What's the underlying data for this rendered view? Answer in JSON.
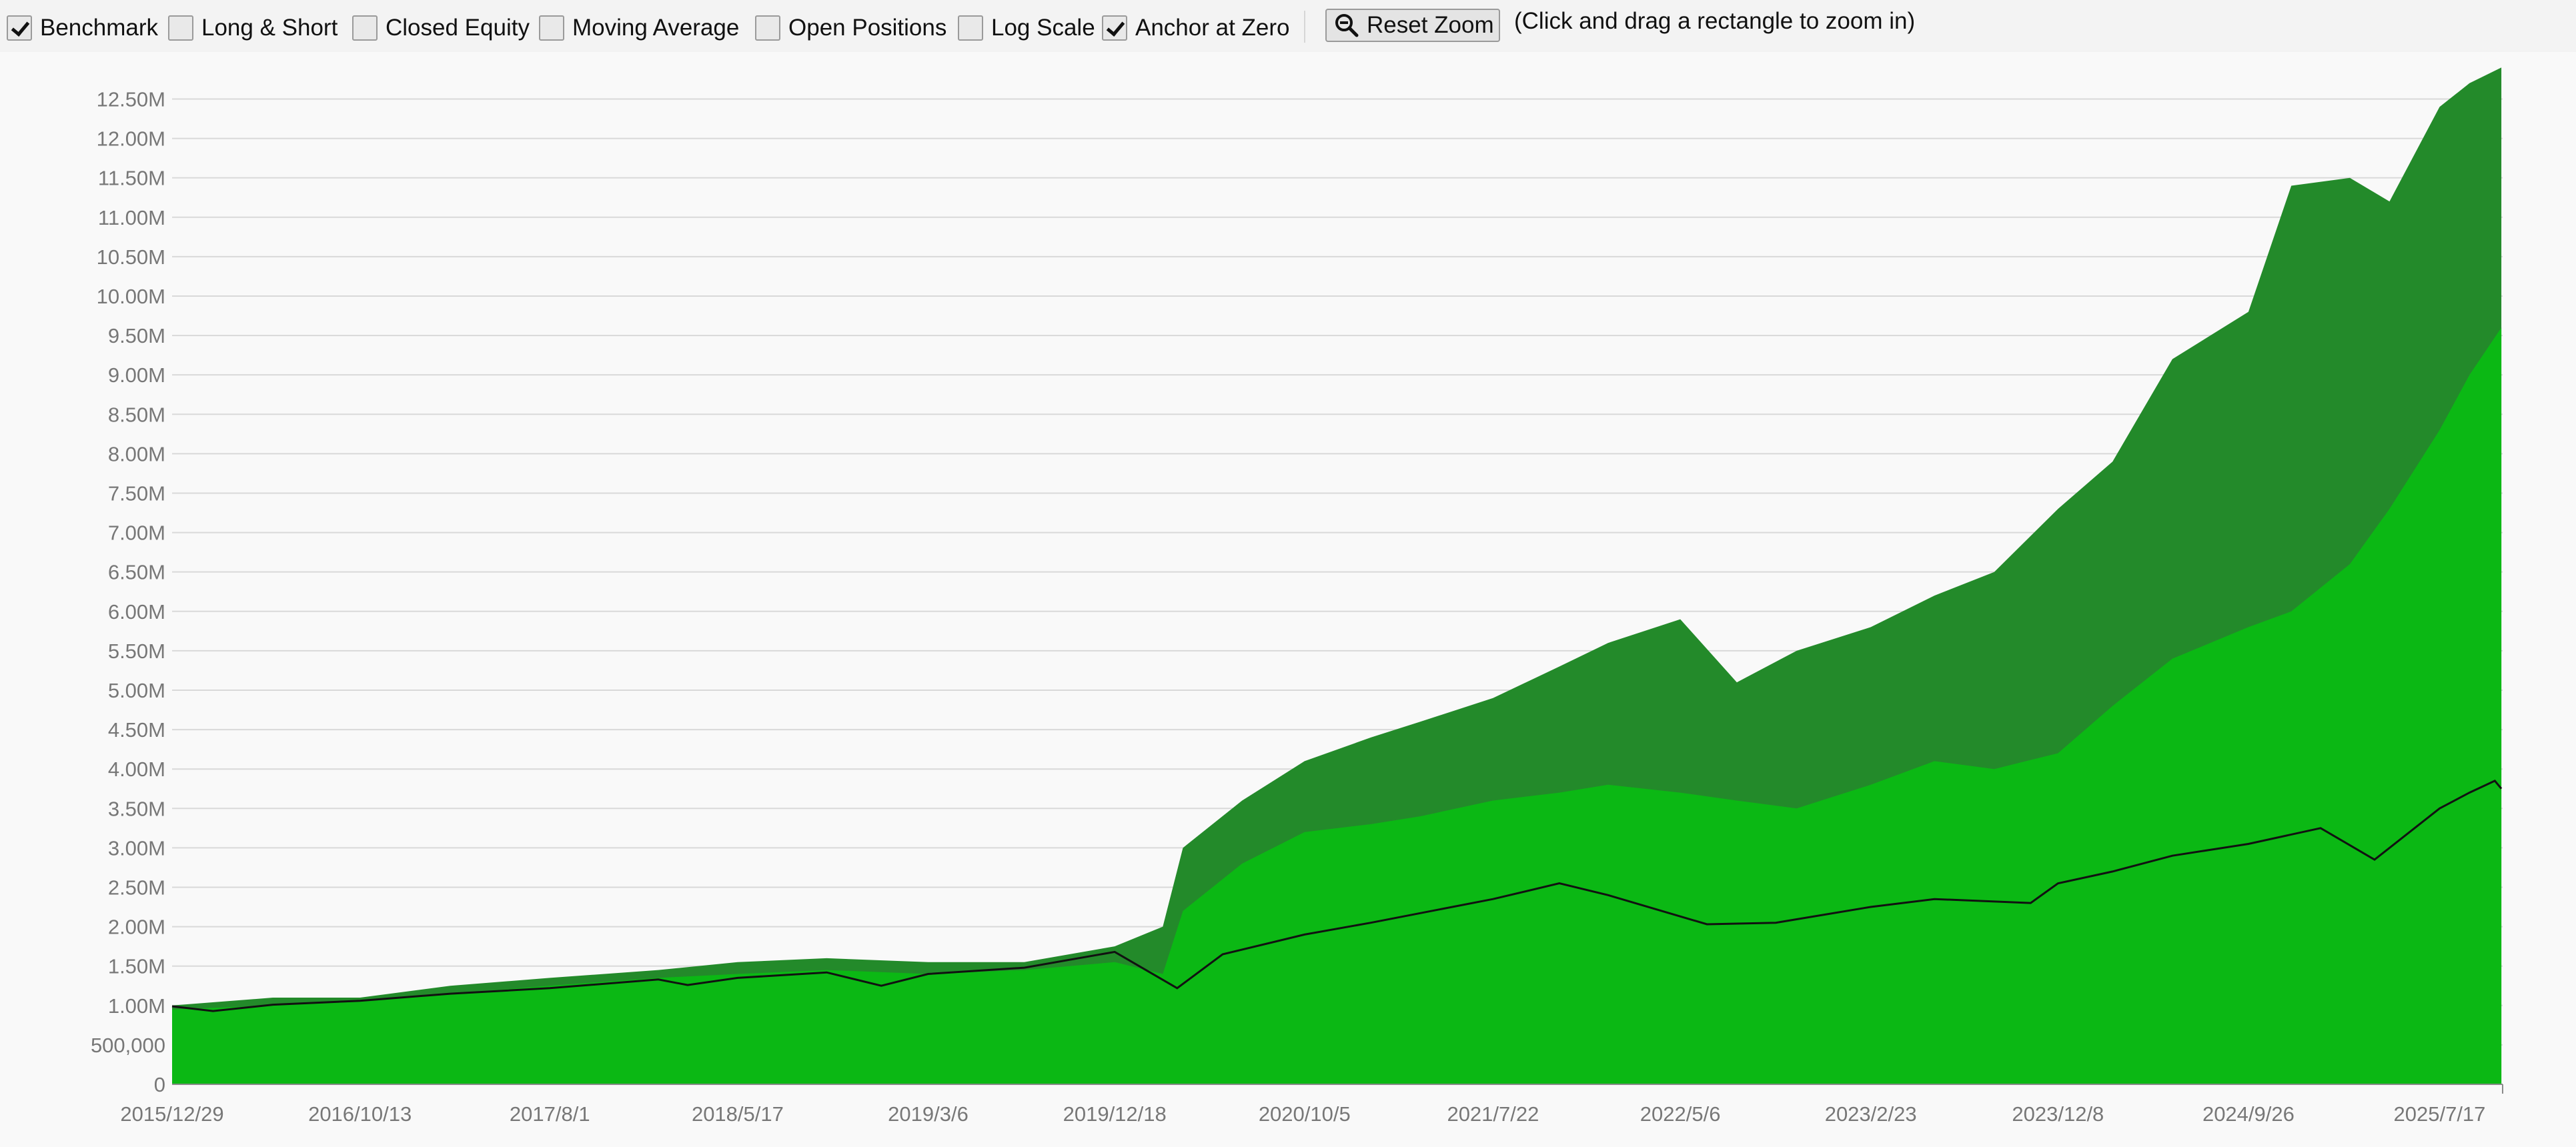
{
  "toolbar": {
    "checkboxes": [
      {
        "label": "Benchmark",
        "checked": true
      },
      {
        "label": "Long & Short",
        "checked": false
      },
      {
        "label": "Closed Equity",
        "checked": false
      },
      {
        "label": "Moving Average",
        "checked": false
      },
      {
        "label": "Open Positions",
        "checked": false
      },
      {
        "label": "Log Scale",
        "checked": false
      },
      {
        "label": "Anchor at Zero",
        "checked": true
      }
    ],
    "reset_zoom_label": "Reset Zoom",
    "zoom_hint": "(Click and drag a rectangle to zoom in)"
  },
  "colors": {
    "equity_fill": "#0bb814",
    "drawdown_fill": "#238a2a",
    "benchmark_line": "#111111",
    "grid": "#d9d9d9"
  },
  "chart_data": {
    "type": "area",
    "title": "",
    "xlabel": "",
    "ylabel": "",
    "ylim": [
      0,
      12800000
    ],
    "grid": true,
    "y_tick_values": [
      0,
      500000,
      1000000,
      1500000,
      2000000,
      2500000,
      3000000,
      3500000,
      4000000,
      4500000,
      5000000,
      5500000,
      6000000,
      6500000,
      7000000,
      7500000,
      8000000,
      8500000,
      9000000,
      9500000,
      10000000,
      10500000,
      11000000,
      11500000,
      12000000,
      12500000
    ],
    "y_tick_labels": [
      "0",
      "500,000",
      "1.00M",
      "1.50M",
      "2.00M",
      "2.50M",
      "3.00M",
      "3.50M",
      "4.00M",
      "4.50M",
      "5.00M",
      "5.50M",
      "6.00M",
      "6.50M",
      "7.00M",
      "7.50M",
      "8.00M",
      "8.50M",
      "9.00M",
      "9.50M",
      "10.00M",
      "10.50M",
      "11.00M",
      "11.50M",
      "12.00M",
      "12.50M"
    ],
    "x_tick_labels": [
      "2015/12/29",
      "2016/10/13",
      "2017/8/1",
      "2018/5/17",
      "2019/3/6",
      "2019/12/18",
      "2020/10/5",
      "2021/7/22",
      "2022/5/6",
      "2023/2/23",
      "2023/12/8",
      "2024/9/26",
      "2025/7/17"
    ],
    "series": [
      {
        "kind": "peak-equity-area",
        "x": [
          "2015/12/29",
          "2016/6/1",
          "2016/10/13",
          "2017/3/1",
          "2017/8/1",
          "2018/1/15",
          "2018/5/17",
          "2018/10/1",
          "2019/3/6",
          "2019/8/1",
          "2019/12/18",
          "2020/3/1",
          "2020/4/1",
          "2020/7/1",
          "2020/10/5",
          "2021/1/15",
          "2021/4/1",
          "2021/7/22",
          "2021/11/1",
          "2022/1/15",
          "2022/5/6",
          "2022/8/1",
          "2022/11/1",
          "2023/2/23",
          "2023/6/1",
          "2023/9/1",
          "2023/12/8",
          "2024/3/1",
          "2024/6/1",
          "2024/9/26",
          "2024/12/1",
          "2025/3/1",
          "2025/5/1",
          "2025/7/17",
          "2025/9/1",
          "2025/10/20"
        ],
        "values": [
          1000000,
          1100000,
          1100000,
          1250000,
          1350000,
          1450000,
          1550000,
          1600000,
          1550000,
          1550000,
          1750000,
          2000000,
          3000000,
          3600000,
          4100000,
          4400000,
          4600000,
          4900000,
          5300000,
          5600000,
          5900000,
          5100000,
          5500000,
          5800000,
          6200000,
          6500000,
          7300000,
          7900000,
          9200000,
          9800000,
          11400000,
          11500000,
          11200000,
          12400000,
          12700000,
          12900000
        ]
      },
      {
        "kind": "equity-area",
        "x": [
          "2015/12/29",
          "2016/6/1",
          "2016/10/13",
          "2017/3/1",
          "2017/8/1",
          "2018/1/15",
          "2018/5/17",
          "2018/10/1",
          "2019/3/6",
          "2019/8/1",
          "2019/12/18",
          "2020/3/1",
          "2020/4/1",
          "2020/7/1",
          "2020/10/5",
          "2021/1/15",
          "2021/4/1",
          "2021/7/22",
          "2021/11/1",
          "2022/1/15",
          "2022/5/6",
          "2022/8/1",
          "2022/11/1",
          "2023/2/23",
          "2023/6/1",
          "2023/9/1",
          "2023/12/8",
          "2024/3/1",
          "2024/6/1",
          "2024/9/26",
          "2024/12/1",
          "2025/3/1",
          "2025/5/1",
          "2025/7/17",
          "2025/9/1",
          "2025/10/20"
        ],
        "values": [
          950000,
          1000000,
          1050000,
          1150000,
          1250000,
          1350000,
          1400000,
          1450000,
          1400000,
          1450000,
          1550000,
          1400000,
          2200000,
          2800000,
          3200000,
          3300000,
          3400000,
          3600000,
          3700000,
          3800000,
          3700000,
          3600000,
          3500000,
          3800000,
          4100000,
          4000000,
          4200000,
          4800000,
          5400000,
          5800000,
          6000000,
          6600000,
          7300000,
          8300000,
          9000000,
          9600000
        ]
      },
      {
        "kind": "benchmark-line",
        "x": [
          "2015/12/29",
          "2016/3/1",
          "2016/6/1",
          "2016/10/13",
          "2017/3/1",
          "2017/8/1",
          "2018/1/15",
          "2018/3/1",
          "2018/5/17",
          "2018/10/1",
          "2018/12/24",
          "2019/3/6",
          "2019/8/1",
          "2019/12/18",
          "2020/3/23",
          "2020/6/1",
          "2020/10/5",
          "2021/1/15",
          "2021/7/22",
          "2021/11/1",
          "2022/1/15",
          "2022/6/16",
          "2022/9/30",
          "2023/2/23",
          "2023/6/1",
          "2023/10/27",
          "2023/12/8",
          "2024/3/1",
          "2024/6/1",
          "2024/9/26",
          "2025/1/15",
          "2025/4/8",
          "2025/7/17",
          "2025/9/1",
          "2025/10/10",
          "2025/10/20"
        ],
        "values": [
          990000,
          930000,
          1010000,
          1060000,
          1150000,
          1220000,
          1330000,
          1260000,
          1350000,
          1420000,
          1250000,
          1400000,
          1480000,
          1680000,
          1220000,
          1650000,
          1900000,
          2050000,
          2350000,
          2550000,
          2400000,
          2030000,
          2050000,
          2250000,
          2350000,
          2300000,
          2550000,
          2700000,
          2900000,
          3050000,
          3250000,
          2850000,
          3500000,
          3700000,
          3850000,
          3750000
        ]
      }
    ]
  }
}
